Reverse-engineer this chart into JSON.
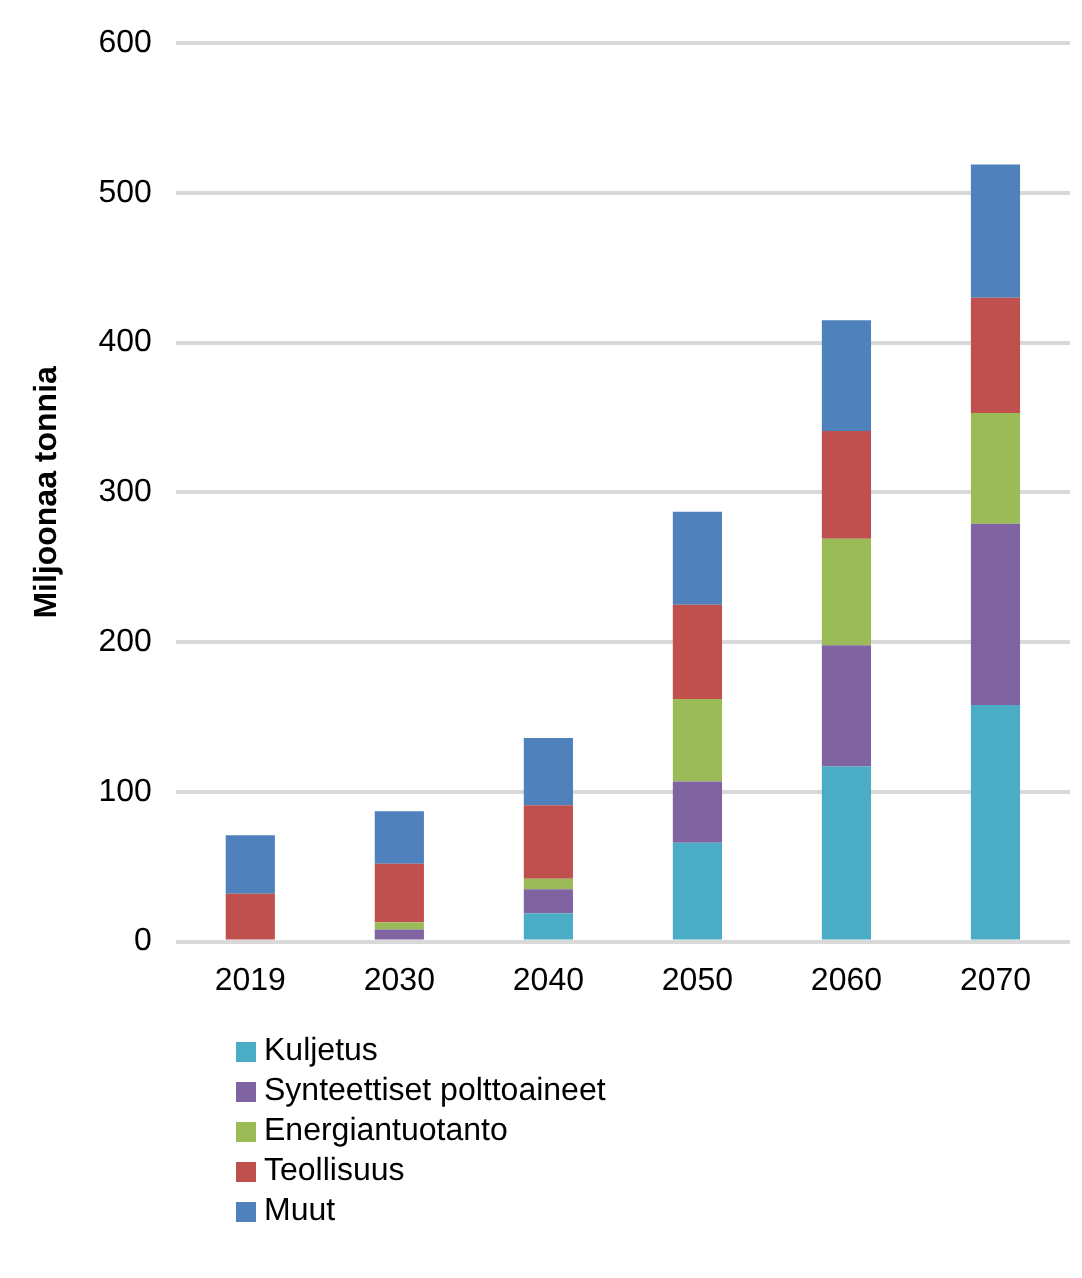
{
  "chart_data": {
    "type": "bar",
    "ylabel": "Miljoonaa tonnia",
    "categories": [
      "2019",
      "2030",
      "2040",
      "2050",
      "2060",
      "2070"
    ],
    "stacked": true,
    "ylim": [
      0,
      600
    ],
    "yticks": [
      0,
      100,
      200,
      300,
      400,
      500,
      600
    ],
    "grid": "y",
    "legend": "bottom",
    "series": [
      {
        "name": "Kuljetus",
        "color": "#4bacc6",
        "values": [
          0,
          0,
          19,
          66,
          117,
          158
        ]
      },
      {
        "name": "Synteettiset polttoaineet",
        "color": "#8064a2",
        "values": [
          0,
          8,
          16,
          41,
          81,
          121
        ]
      },
      {
        "name": "Energiantuotanto",
        "color": "#9bbb59",
        "values": [
          0,
          5,
          7,
          55,
          71,
          74
        ]
      },
      {
        "name": "Teollisuus",
        "color": "#c0504d",
        "values": [
          32,
          39,
          49,
          63,
          72,
          77
        ]
      },
      {
        "name": "Muut",
        "color": "#4f81bd",
        "values": [
          39,
          35,
          45,
          62,
          74,
          89
        ]
      }
    ]
  }
}
